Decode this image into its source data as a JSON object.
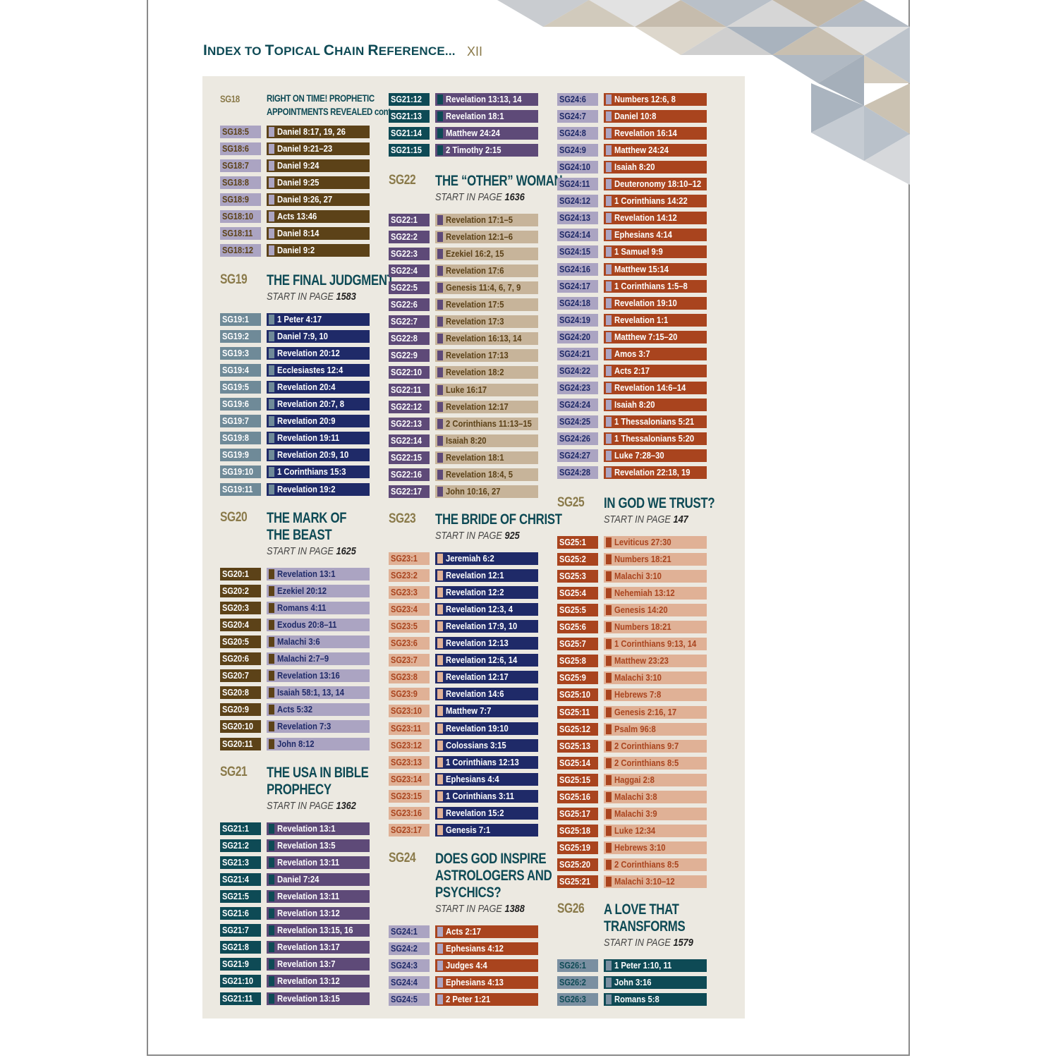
{
  "header": {
    "title_prefix_big": "I",
    "title_part1": "NDEX TO ",
    "title_big2": "T",
    "title_part2": "OPICAL ",
    "title_big3": "C",
    "title_part3": "HAIN  ",
    "title_big4": "R",
    "title_part4": "EFERENCE...",
    "page_number": "XII"
  },
  "colors": {
    "panel": "#ece9e1",
    "teal_dark": "#0e4a55",
    "gold": "#8a7a4a",
    "brown": "#5c4218",
    "lavender": "#aba4c2",
    "navy": "#1f2a68",
    "slate": "#6f8a98",
    "purple": "#5e4a78",
    "tan": "#c7b49a",
    "salmon": "#e0b196",
    "rust": "#a9441e",
    "steel": "#7a8fa1"
  },
  "columns": [
    {
      "sections": [
        {
          "code": "SG18",
          "title": [
            "RIGHT ON TIME! PROPHETIC",
            "APPOINTMENTS REVEALED cont."
          ],
          "small": true,
          "start_label": "",
          "start_page": "",
          "entries": [
            [
              "SG18:5",
              "Daniel 8:17, 19, 26"
            ],
            [
              "SG18:6",
              "Daniel 9:21–23"
            ],
            [
              "SG18:7",
              "Daniel 9:24"
            ],
            [
              "SG18:8",
              "Daniel 9:25"
            ],
            [
              "SG18:9",
              "Daniel 9:26, 27"
            ],
            [
              "SG18:10",
              "Acts 13:46"
            ],
            [
              "SG18:11",
              "Daniel 8:14"
            ],
            [
              "SG18:12",
              "Daniel 9:2"
            ]
          ],
          "scheme": "s18"
        },
        {
          "code": "SG19",
          "title": [
            "THE FINAL JUDGMENT"
          ],
          "start_label": "START IN PAGE ",
          "start_page": "1583",
          "entries": [
            [
              "SG19:1",
              "1 Peter 4:17"
            ],
            [
              "SG19:2",
              "Daniel 7:9, 10"
            ],
            [
              "SG19:3",
              "Revelation 20:12"
            ],
            [
              "SG19:4",
              "Ecclesiastes 12:4"
            ],
            [
              "SG19:5",
              "Revelation 20:4"
            ],
            [
              "SG19:6",
              "Revelation 20:7, 8"
            ],
            [
              "SG19:7",
              "Revelation 20:9"
            ],
            [
              "SG19:8",
              "Revelation 19:11"
            ],
            [
              "SG19:9",
              "Revelation 20:9, 10"
            ],
            [
              "SG19:10",
              "1 Corinthians 15:3"
            ],
            [
              "SG19:11",
              "Revelation 19:2"
            ]
          ],
          "scheme": "s19"
        },
        {
          "code": "SG20",
          "title": [
            "THE MARK OF",
            "THE BEAST"
          ],
          "start_label": "START IN PAGE ",
          "start_page": "1625",
          "entries": [
            [
              "SG20:1",
              "Revelation 13:1"
            ],
            [
              "SG20:2",
              "Ezekiel 20:12"
            ],
            [
              "SG20:3",
              "Romans 4:11"
            ],
            [
              "SG20:4",
              "Exodus 20:8–11"
            ],
            [
              "SG20:5",
              "Malachi 3:6"
            ],
            [
              "SG20:6",
              "Malachi 2:7–9"
            ],
            [
              "SG20:7",
              "Revelation 13:16"
            ],
            [
              "SG20:8",
              "Isaiah 58:1, 13, 14"
            ],
            [
              "SG20:9",
              "Acts 5:32"
            ],
            [
              "SG20:10",
              "Revelation 7:3"
            ],
            [
              "SG20:11",
              "John 8:12"
            ]
          ],
          "scheme": "s20"
        },
        {
          "code": "SG21",
          "title": [
            "THE USA IN BIBLE",
            "PROPHECY"
          ],
          "start_label": "START IN PAGE ",
          "start_page": "1362",
          "entries": [
            [
              "SG21:1",
              "Revelation 13:1"
            ],
            [
              "SG21:2",
              "Revelation 13:5"
            ],
            [
              "SG21:3",
              "Revelation 13:11"
            ],
            [
              "SG21:4",
              "Daniel 7:24"
            ],
            [
              "SG21:5",
              "Revelation 13:11"
            ],
            [
              "SG21:6",
              "Revelation 13:12"
            ],
            [
              "SG21:7",
              "Revelation 13:15, 16"
            ],
            [
              "SG21:8",
              "Revelation 13:17"
            ],
            [
              "SG21:9",
              "Revelation 13:7"
            ],
            [
              "SG21:10",
              "Revelation 13:12"
            ],
            [
              "SG21:11",
              "Revelation 13:15"
            ]
          ],
          "scheme": "s21"
        }
      ]
    },
    {
      "sections": [
        {
          "code": "",
          "title": [],
          "start_label": "",
          "start_page": "",
          "entries": [
            [
              "SG21:12",
              "Revelation 13:13, 14"
            ],
            [
              "SG21:13",
              "Revelation 18:1"
            ],
            [
              "SG21:14",
              "Matthew 24:24"
            ],
            [
              "SG21:15",
              "2 Timothy 2:15"
            ]
          ],
          "scheme": "s21"
        },
        {
          "code": "SG22",
          "title": [
            "THE “OTHER” WOMAN"
          ],
          "start_label": "START IN PAGE ",
          "start_page": "1636",
          "entries": [
            [
              "SG22:1",
              "Revelation 17:1–5"
            ],
            [
              "SG22:2",
              "Revelation 12:1–6"
            ],
            [
              "SG22:3",
              "Ezekiel 16:2, 15"
            ],
            [
              "SG22:4",
              "Revelation 17:6"
            ],
            [
              "SG22:5",
              "Genesis 11:4, 6, 7, 9"
            ],
            [
              "SG22:6",
              "Revelation 17:5"
            ],
            [
              "SG22:7",
              "Revelation 17:3"
            ],
            [
              "SG22:8",
              "Revelation 16:13, 14"
            ],
            [
              "SG22:9",
              "Revelation 17:13"
            ],
            [
              "SG22:10",
              "Revelation 18:2"
            ],
            [
              "SG22:11",
              "Luke 16:17"
            ],
            [
              "SG22:12",
              "Revelation 12:17"
            ],
            [
              "SG22:13",
              "2 Corinthians 11:13–15"
            ],
            [
              "SG22:14",
              "Isaiah 8:20"
            ],
            [
              "SG22:15",
              "Revelation 18:1"
            ],
            [
              "SG22:16",
              "Revelation 18:4, 5"
            ],
            [
              "SG22:17",
              "John 10:16, 27"
            ]
          ],
          "scheme": "s22"
        },
        {
          "code": "SG23",
          "title": [
            "THE BRIDE OF CHRIST"
          ],
          "start_label": "START IN PAGE ",
          "start_page": "925",
          "entries": [
            [
              "SG23:1",
              "Jeremiah 6:2"
            ],
            [
              "SG23:2",
              "Revelation 12:1"
            ],
            [
              "SG23:3",
              "Revelation 12:2"
            ],
            [
              "SG23:4",
              "Revelation 12:3, 4"
            ],
            [
              "SG23:5",
              "Revelation 17:9, 10"
            ],
            [
              "SG23:6",
              "Revelation 12:13"
            ],
            [
              "SG23:7",
              "Revelation 12:6, 14"
            ],
            [
              "SG23:8",
              "Revelation 12:17"
            ],
            [
              "SG23:9",
              "Revelation 14:6"
            ],
            [
              "SG23:10",
              "Matthew 7:7"
            ],
            [
              "SG23:11",
              "Revelation 19:10"
            ],
            [
              "SG23:12",
              "Colossians 3:15"
            ],
            [
              "SG23:13",
              "1 Corinthians 12:13"
            ],
            [
              "SG23:14",
              "Ephesians 4:4"
            ],
            [
              "SG23:15",
              "1 Corinthians 3:11"
            ],
            [
              "SG23:16",
              "Revelation 15:2"
            ],
            [
              "SG23:17",
              "Genesis 7:1"
            ]
          ],
          "scheme": "s23"
        },
        {
          "code": "SG24",
          "title": [
            "DOES GOD INSPIRE",
            "ASTROLOGERS AND",
            "PSYCHICS?"
          ],
          "start_label": "START IN PAGE ",
          "start_page": "1388",
          "entries": [
            [
              "SG24:1",
              "Acts 2:17"
            ],
            [
              "SG24:2",
              "Ephesians 4:12"
            ],
            [
              "SG24:3",
              "Judges 4:4"
            ],
            [
              "SG24:4",
              "Ephesians 4:13"
            ],
            [
              "SG24:5",
              "2 Peter 1:21"
            ]
          ],
          "scheme": "s24"
        }
      ]
    },
    {
      "sections": [
        {
          "code": "",
          "title": [],
          "start_label": "",
          "start_page": "",
          "entries": [
            [
              "SG24:6",
              "Numbers 12:6, 8"
            ],
            [
              "SG24:7",
              "Daniel 10:8"
            ],
            [
              "SG24:8",
              "Revelation 16:14"
            ],
            [
              "SG24:9",
              "Matthew 24:24"
            ],
            [
              "SG24:10",
              "Isaiah 8:20"
            ],
            [
              "SG24:11",
              "Deuteronomy 18:10–12"
            ],
            [
              "SG24:12",
              "1 Corinthians 14:22"
            ],
            [
              "SG24:13",
              "Revelation 14:12"
            ],
            [
              "SG24:14",
              "Ephesians 4:14"
            ],
            [
              "SG24:15",
              "1 Samuel 9:9"
            ],
            [
              "SG24:16",
              "Matthew 15:14"
            ],
            [
              "SG24:17",
              "1 Corinthians 1:5–8"
            ],
            [
              "SG24:18",
              "Revelation 19:10"
            ],
            [
              "SG24:19",
              "Revelation 1:1"
            ],
            [
              "SG24:20",
              "Matthew 7:15–20"
            ],
            [
              "SG24:21",
              "Amos 3:7"
            ],
            [
              "SG24:22",
              "Acts 2:17"
            ],
            [
              "SG24:23",
              "Revelation 14:6–14"
            ],
            [
              "SG24:24",
              "Isaiah 8:20"
            ],
            [
              "SG24:25",
              "1 Thessalonians 5:21"
            ],
            [
              "SG24:26",
              "1 Thessalonians 5:20"
            ],
            [
              "SG24:27",
              "Luke 7:28–30"
            ],
            [
              "SG24:28",
              "Revelation 22:18, 19"
            ]
          ],
          "scheme": "s24"
        },
        {
          "code": "SG25",
          "title": [
            "IN GOD WE TRUST?"
          ],
          "start_label": "START IN PAGE ",
          "start_page": "147",
          "entries": [
            [
              "SG25:1",
              "Leviticus 27:30"
            ],
            [
              "SG25:2",
              "Numbers 18:21"
            ],
            [
              "SG25:3",
              "Malachi 3:10"
            ],
            [
              "SG25:4",
              "Nehemiah 13:12"
            ],
            [
              "SG25:5",
              "Genesis 14:20"
            ],
            [
              "SG25:6",
              "Numbers 18:21"
            ],
            [
              "SG25:7",
              "1 Corinthians 9:13, 14"
            ],
            [
              "SG25:8",
              "Matthew 23:23"
            ],
            [
              "SG25:9",
              "Malachi 3:10"
            ],
            [
              "SG25:10",
              "Hebrews 7:8"
            ],
            [
              "SG25:11",
              "Genesis 2:16, 17"
            ],
            [
              "SG25:12",
              "Psalm 96:8"
            ],
            [
              "SG25:13",
              "2 Corinthians 9:7"
            ],
            [
              "SG25:14",
              "2 Corinthians 8:5"
            ],
            [
              "SG25:15",
              "Haggai 2:8"
            ],
            [
              "SG25:16",
              "Malachi 3:8"
            ],
            [
              "SG25:17",
              "Malachi 3:9"
            ],
            [
              "SG25:18",
              "Luke 12:34"
            ],
            [
              "SG25:19",
              "Hebrews 3:10"
            ],
            [
              "SG25:20",
              "2 Corinthians 8:5"
            ],
            [
              "SG25:21",
              "Malachi 3:10–12"
            ]
          ],
          "scheme": "s25"
        },
        {
          "code": "SG26",
          "title": [
            "A LOVE THAT",
            "TRANSFORMS"
          ],
          "start_label": "START IN PAGE ",
          "start_page": "1579",
          "entries": [
            [
              "SG26:1",
              "1 Peter 1:10, 11"
            ],
            [
              "SG26:2",
              "John 3:16"
            ],
            [
              "SG26:3",
              "Romans 5:8"
            ]
          ],
          "scheme": "s26"
        }
      ]
    }
  ]
}
